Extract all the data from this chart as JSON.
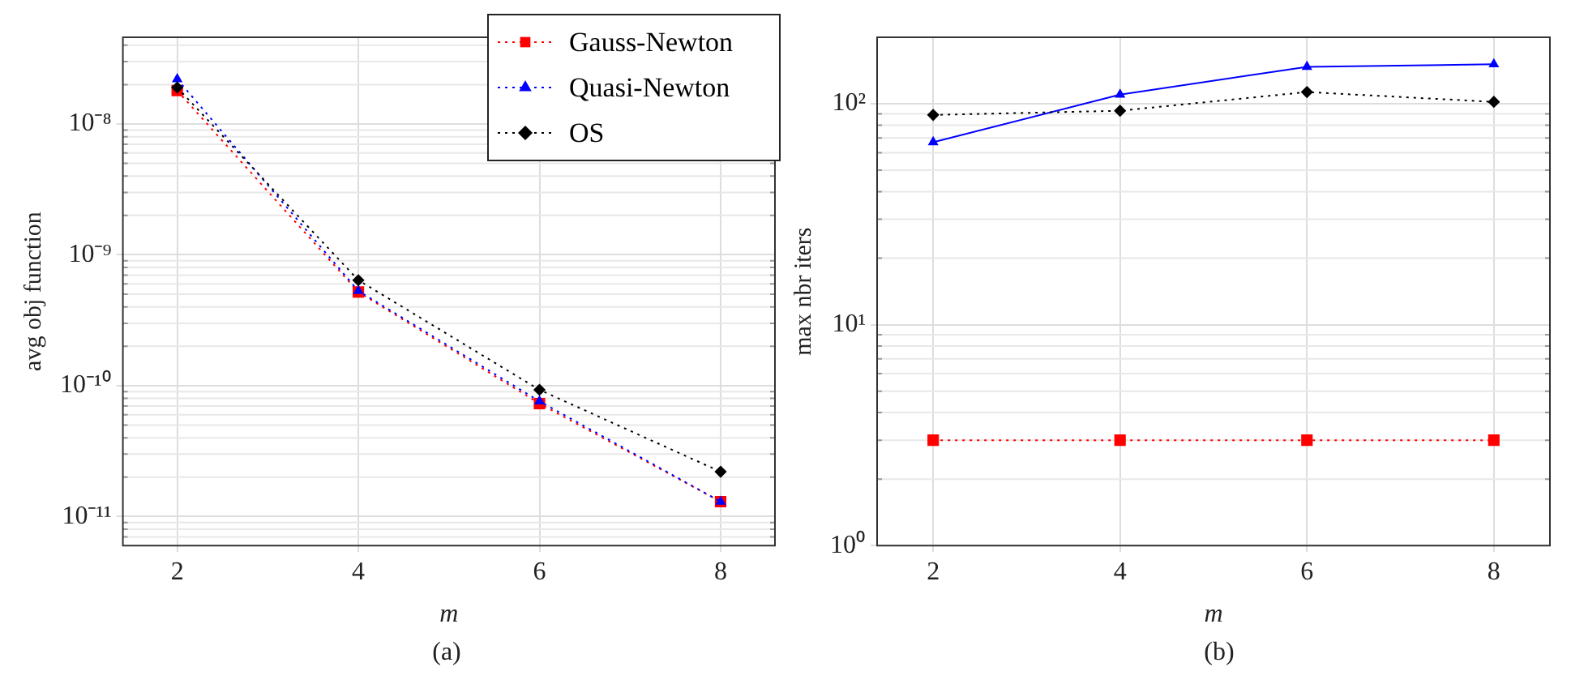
{
  "chart_data": [
    {
      "type": "line",
      "xlabel": "m",
      "ylabel": "avg obj function",
      "annotations": [
        "(a)"
      ],
      "x": [
        2,
        4,
        6,
        8
      ],
      "xlim": [
        1.4,
        8.6
      ],
      "xticks": [
        2,
        4,
        6,
        8
      ],
      "log": "y",
      "ylim": [
        6e-12,
        4.6e-08
      ],
      "yticks": [
        {
          "value": 1e-11,
          "label": "10⁻¹¹"
        },
        {
          "value": 1e-10,
          "label": "10⁻¹⁰"
        },
        {
          "value": 1e-09,
          "label": "10⁻⁹"
        },
        {
          "value": 1e-08,
          "label": "10⁻⁸"
        }
      ],
      "grid": true,
      "legend": "top right",
      "series": [
        {
          "name": "Gauss-Newton",
          "color": "#ff0000",
          "marker": "square",
          "line_style": "dotted",
          "values": [
            1.8e-08,
            5.2e-10,
            7.3e-11,
            1.3e-11
          ]
        },
        {
          "name": "Quasi-Newton",
          "color": "#0000ff",
          "marker": "triangle",
          "line_style": "dotted",
          "values": [
            2.2e-08,
            5.3e-10,
            7.6e-11,
            1.3e-11
          ]
        },
        {
          "name": "OS",
          "color": "#000000",
          "marker": "diamond",
          "line_style": "dotted",
          "values": [
            1.9e-08,
            6.4e-10,
            9.3e-11,
            2.2e-11
          ]
        }
      ]
    },
    {
      "type": "line",
      "xlabel": "m",
      "ylabel": "max nbr iters",
      "annotations": [
        "(b)"
      ],
      "x": [
        2,
        4,
        6,
        8
      ],
      "xlim": [
        1.4,
        8.6
      ],
      "xticks": [
        2,
        4,
        6,
        8
      ],
      "log": "y",
      "ylim": [
        1,
        200
      ],
      "yticks": [
        {
          "value": 1,
          "label": "10⁰"
        },
        {
          "value": 10,
          "label": "10¹"
        },
        {
          "value": 100,
          "label": "10²"
        }
      ],
      "grid": true,
      "series": [
        {
          "color": "#ff0000",
          "marker": "square",
          "line_style": "dotted",
          "values": [
            3,
            3,
            3,
            3
          ]
        },
        {
          "color": "#0000ff",
          "marker": "triangle",
          "line_style": "solid",
          "values": [
            67,
            110,
            147,
            151
          ]
        },
        {
          "color": "#000000",
          "marker": "diamond",
          "line_style": "dotted",
          "values": [
            89,
            93,
            113,
            102
          ]
        }
      ]
    }
  ]
}
